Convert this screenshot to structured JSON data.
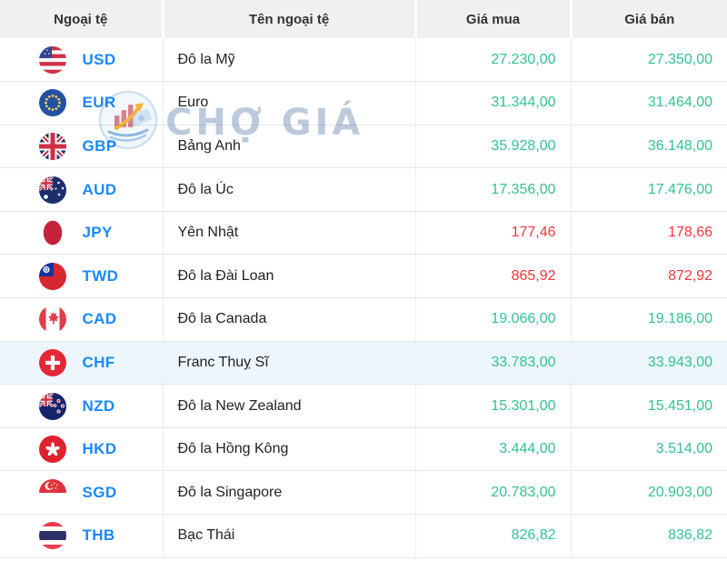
{
  "table": {
    "columns": [
      "Ngoại tệ",
      "Tên ngoại tệ",
      "Giá mua",
      "Giá bán"
    ]
  },
  "watermark": {
    "text": "CHỢ GIÁ",
    "logo_icon": "cho-gia-chart-logo-icon"
  },
  "colors": {
    "accent_blue": "#1989fa",
    "positive_green": "#32c390",
    "negative_red": "#f7363c",
    "highlight_row": "#edf6fd",
    "header_bg": "#f0f0f0"
  },
  "rows": [
    {
      "code": "USD",
      "name": "Đô la Mỹ",
      "buy": "27.230,00",
      "sell": "27.350,00",
      "price_color": "green",
      "flag_icon": "usd-flag-icon",
      "highlighted": false
    },
    {
      "code": "EUR",
      "name": "Euro",
      "buy": "31.344,00",
      "sell": "31.464,00",
      "price_color": "green",
      "flag_icon": "eur-flag-icon",
      "highlighted": false
    },
    {
      "code": "GBP",
      "name": "Bảng Anh",
      "buy": "35.928,00",
      "sell": "36.148,00",
      "price_color": "green",
      "flag_icon": "gbp-flag-icon",
      "highlighted": false
    },
    {
      "code": "AUD",
      "name": "Đô la Úc",
      "buy": "17.356,00",
      "sell": "17.476,00",
      "price_color": "green",
      "flag_icon": "aud-flag-icon",
      "highlighted": false
    },
    {
      "code": "JPY",
      "name": "Yên Nhật",
      "buy": "177,46",
      "sell": "178,66",
      "price_color": "red",
      "flag_icon": "jpy-flag-icon",
      "highlighted": false
    },
    {
      "code": "TWD",
      "name": "Đô la Đài Loan",
      "buy": "865,92",
      "sell": "872,92",
      "price_color": "red",
      "flag_icon": "twd-flag-icon",
      "highlighted": false
    },
    {
      "code": "CAD",
      "name": "Đô la Canada",
      "buy": "19.066,00",
      "sell": "19.186,00",
      "price_color": "green",
      "flag_icon": "cad-flag-icon",
      "highlighted": false
    },
    {
      "code": "CHF",
      "name": "Franc Thuỵ Sĩ",
      "buy": "33.783,00",
      "sell": "33.943,00",
      "price_color": "green",
      "flag_icon": "chf-flag-icon",
      "highlighted": true
    },
    {
      "code": "NZD",
      "name": "Đô la New Zealand",
      "buy": "15.301,00",
      "sell": "15.451,00",
      "price_color": "green",
      "flag_icon": "nzd-flag-icon",
      "highlighted": false
    },
    {
      "code": "HKD",
      "name": "Đô la Hồng Kông",
      "buy": "3.444,00",
      "sell": "3.514,00",
      "price_color": "green",
      "flag_icon": "hkd-flag-icon",
      "highlighted": false
    },
    {
      "code": "SGD",
      "name": "Đô la Singapore",
      "buy": "20.783,00",
      "sell": "20.903,00",
      "price_color": "green",
      "flag_icon": "sgd-flag-icon",
      "highlighted": false
    },
    {
      "code": "THB",
      "name": "Bạc Thái",
      "buy": "826,82",
      "sell": "836,82",
      "price_color": "green",
      "flag_icon": "thb-flag-icon",
      "highlighted": false
    }
  ]
}
